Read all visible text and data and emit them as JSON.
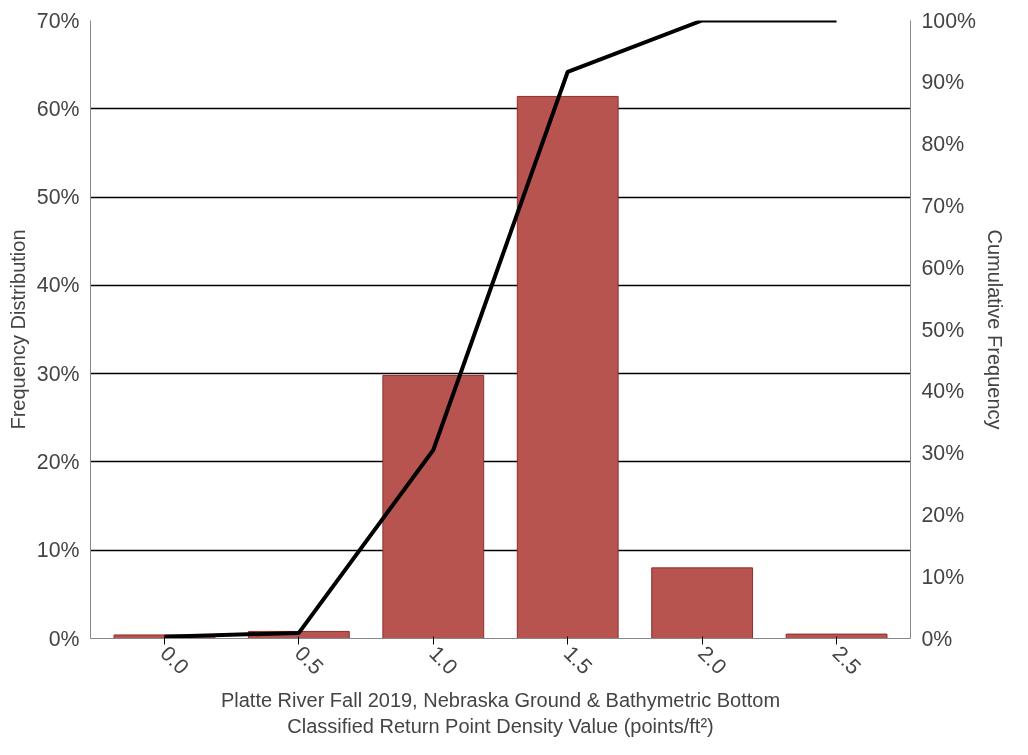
{
  "chart_data": {
    "type": "bar",
    "xlabel": "Platte River Fall 2019, Nebraska Ground & Bathymetric Bottom\nClassified Return Point Density Value (points/ft²)",
    "ylabel": "Frequency Distribution",
    "y2label": "Cumulative Frequency",
    "categories": [
      "0.0",
      "0.5",
      "1.0",
      "1.5",
      "2.0",
      "2.5"
    ],
    "series": [
      {
        "color": "#b85450",
        "values": [
          0.4,
          0.8,
          29.8,
          61.4,
          8.0,
          0.5
        ]
      },
      {
        "type": "line",
        "axis": "y2",
        "color": "#000000",
        "values": [
          0.3,
          0.9,
          30.5,
          91.7,
          100,
          100
        ]
      }
    ],
    "ylim": [
      0,
      70
    ],
    "yticks": [
      {
        "value": 0,
        "label": "0%"
      },
      {
        "value": 10,
        "label": "10%"
      },
      {
        "value": 20,
        "label": "20%"
      },
      {
        "value": 30,
        "label": "30%"
      },
      {
        "value": 40,
        "label": "40%"
      },
      {
        "value": 50,
        "label": "50%"
      },
      {
        "value": 60,
        "label": "60%"
      },
      {
        "value": 70,
        "label": "70%"
      }
    ],
    "y2lim": [
      0,
      100
    ],
    "y2ticks": [
      {
        "value": 0,
        "label": "0%"
      },
      {
        "value": 10,
        "label": "10%"
      },
      {
        "value": 20,
        "label": "20%"
      },
      {
        "value": 30,
        "label": "30%"
      },
      {
        "value": 40,
        "label": "40%"
      },
      {
        "value": 50,
        "label": "50%"
      },
      {
        "value": 60,
        "label": "60%"
      },
      {
        "value": 70,
        "label": "70%"
      },
      {
        "value": 80,
        "label": "80%"
      },
      {
        "value": 90,
        "label": "90%"
      },
      {
        "value": 100,
        "label": "100%"
      }
    ],
    "grid": "y",
    "marker": "none",
    "line_style": "solid"
  }
}
